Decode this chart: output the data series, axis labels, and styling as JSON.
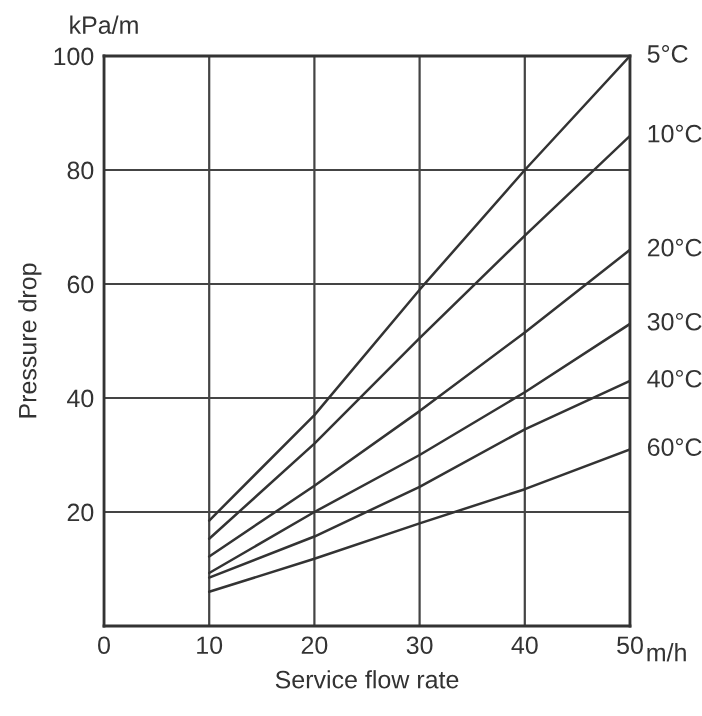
{
  "chart_data": {
    "type": "line",
    "xlabel": "Service flow rate",
    "ylabel": "Pressure drop",
    "annotations": [
      "kPa/m",
      "m/h"
    ],
    "x": [
      10,
      20,
      30,
      40,
      50
    ],
    "series": [
      {
        "name": "5°C",
        "color": "#333333",
        "values": [
          18.5,
          37,
          59,
          80,
          100
        ]
      },
      {
        "name": "10°C",
        "color": "#333333",
        "values": [
          15.3,
          32,
          50.5,
          68.5,
          86
        ]
      },
      {
        "name": "20°C",
        "color": "#333333",
        "values": [
          12.2,
          24.6,
          37.7,
          51.5,
          66
        ]
      },
      {
        "name": "30°C",
        "color": "#333333",
        "values": [
          9.3,
          20,
          30,
          41,
          53
        ]
      },
      {
        "name": "40°C",
        "color": "#333333",
        "values": [
          8.5,
          15.7,
          24.4,
          34.5,
          43
        ]
      },
      {
        "name": "60°C",
        "color": "#333333",
        "values": [
          6,
          11.8,
          18,
          24,
          31
        ]
      }
    ],
    "xlim": [
      0,
      50
    ],
    "xticks": [
      0,
      10,
      20,
      30,
      40,
      50
    ],
    "ylim": [
      0,
      100
    ],
    "yticks": [
      {
        "value": 0,
        "label": null
      },
      20,
      40,
      60,
      80,
      100
    ],
    "grid": true,
    "legend": false,
    "marker": "none",
    "line_style": "solid"
  }
}
